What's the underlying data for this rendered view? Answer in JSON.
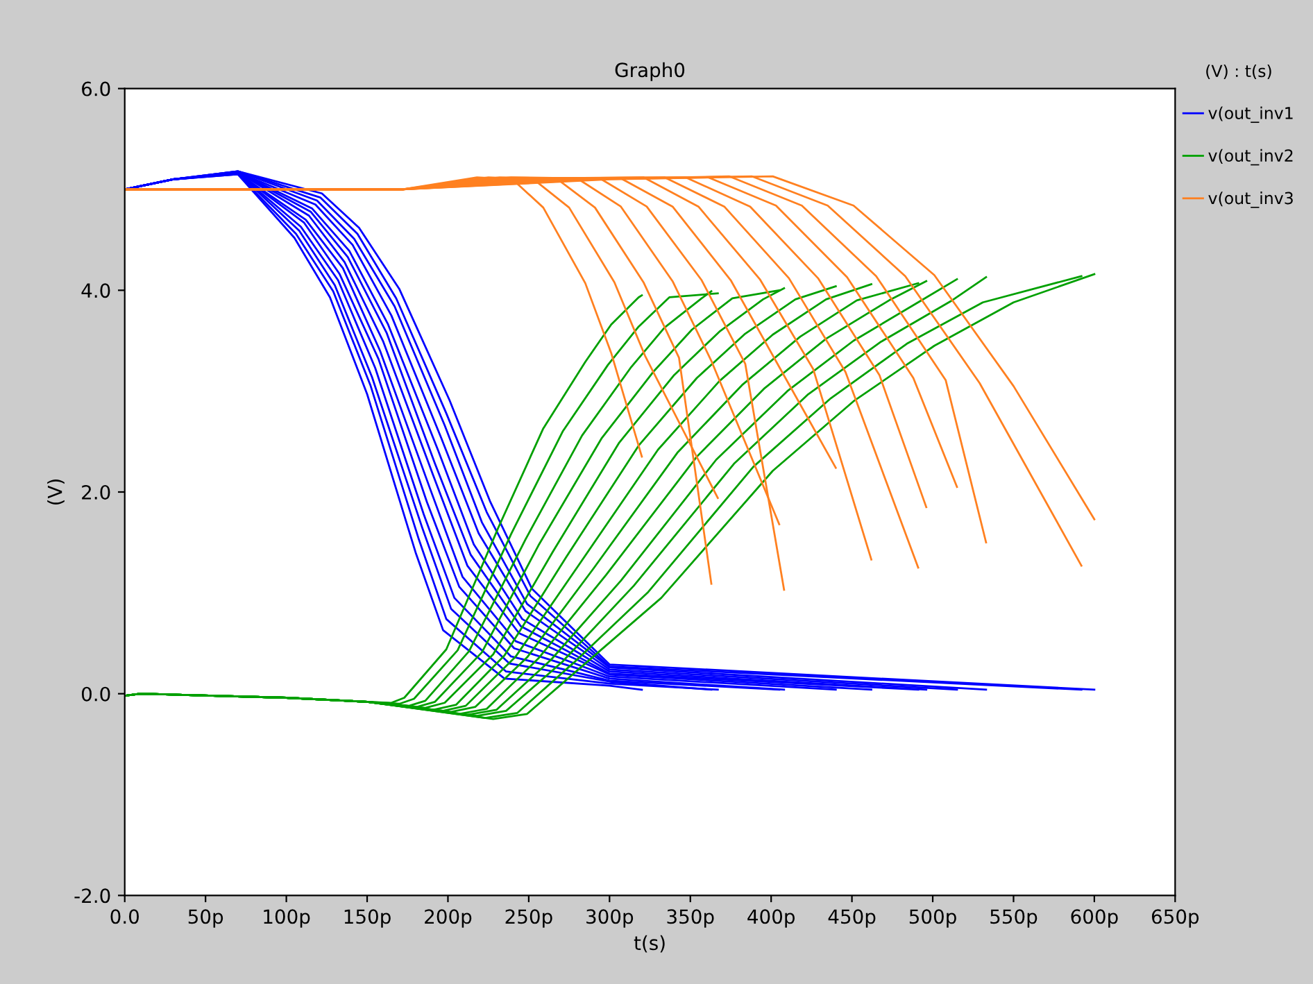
{
  "chart_data": {
    "type": "line",
    "title": "Graph0",
    "xlabel": "t(s)",
    "ylabel": "(V)",
    "legend_title": "(V) : t(s)",
    "legend": "right",
    "grid": false,
    "marker": "none",
    "line_style": "solid",
    "xlim": [
      0,
      650
    ],
    "ylim": [
      -2,
      6
    ],
    "xticks": [
      {
        "value": 0,
        "label": "0.0"
      },
      {
        "value": 50,
        "label": "50p"
      },
      {
        "value": 100,
        "label": "100p"
      },
      {
        "value": 150,
        "label": "150p"
      },
      {
        "value": 200,
        "label": "200p"
      },
      {
        "value": 250,
        "label": "250p"
      },
      {
        "value": 300,
        "label": "300p"
      },
      {
        "value": 350,
        "label": "350p"
      },
      {
        "value": 400,
        "label": "400p"
      },
      {
        "value": 450,
        "label": "450p"
      },
      {
        "value": 500,
        "label": "500p"
      },
      {
        "value": 550,
        "label": "550p"
      },
      {
        "value": 600,
        "label": "600p"
      },
      {
        "value": 650,
        "label": "650p"
      }
    ],
    "yticks": [
      {
        "value": -2,
        "label": "-2.0"
      },
      {
        "value": 0,
        "label": "0.0"
      },
      {
        "value": 2,
        "label": "2.0"
      },
      {
        "value": 4,
        "label": "4.0"
      },
      {
        "value": 6,
        "label": "6.0"
      }
    ],
    "series": [
      {
        "name": "v(out_inv1",
        "color": "#0000ff",
        "x": [
          0,
          30,
          70,
          105,
          127,
          150,
          180,
          197,
          235,
          300,
          320
        ],
        "values": [
          5.0,
          5.1,
          5.15,
          4.52,
          3.93,
          2.97,
          1.4,
          0.63,
          0.15,
          0.08,
          0.04
        ]
      },
      {
        "color": "#0000ff",
        "x": [
          0,
          30,
          70,
          106,
          129,
          152,
          182,
          199,
          236,
          300,
          367
        ],
        "values": [
          5.0,
          5.1,
          5.15,
          4.56,
          3.99,
          3.06,
          1.53,
          0.74,
          0.22,
          0.1,
          0.04
        ]
      },
      {
        "color": "#0000ff",
        "x": [
          0,
          30,
          70,
          108,
          130,
          153,
          184,
          202,
          238,
          300,
          363
        ],
        "values": [
          5.0,
          5.1,
          5.16,
          4.59,
          4.05,
          3.14,
          1.65,
          0.84,
          0.3,
          0.12,
          0.04
        ]
      },
      {
        "color": "#0000ff",
        "x": [
          0,
          30,
          70,
          109,
          132,
          155,
          185,
          204,
          239,
          300,
          405
        ],
        "values": [
          5.0,
          5.1,
          5.16,
          4.63,
          4.1,
          3.23,
          1.78,
          0.95,
          0.37,
          0.13,
          0.04
        ]
      },
      {
        "color": "#0000ff",
        "x": [
          0,
          30,
          70,
          111,
          133,
          157,
          187,
          207,
          241,
          300,
          408
        ],
        "values": [
          5.0,
          5.1,
          5.16,
          4.67,
          4.16,
          3.32,
          1.9,
          1.06,
          0.45,
          0.15,
          0.04
        ]
      },
      {
        "color": "#0000ff",
        "x": [
          0,
          30,
          70,
          112,
          135,
          158,
          189,
          209,
          242,
          300,
          440
        ],
        "values": [
          5.0,
          5.1,
          5.16,
          4.7,
          4.22,
          3.4,
          2.03,
          1.16,
          0.52,
          0.17,
          0.04
        ]
      },
      {
        "color": "#0000ff",
        "x": [
          0,
          30,
          70,
          114,
          136,
          160,
          191,
          212,
          244,
          300,
          462
        ],
        "values": [
          5.0,
          5.1,
          5.17,
          4.74,
          4.28,
          3.49,
          2.16,
          1.27,
          0.6,
          0.19,
          0.04
        ]
      },
      {
        "color": "#0000ff",
        "x": [
          0,
          30,
          70,
          115,
          138,
          162,
          192,
          214,
          245,
          300,
          491
        ],
        "values": [
          5.0,
          5.1,
          5.17,
          4.78,
          4.33,
          3.58,
          2.28,
          1.38,
          0.67,
          0.2,
          0.04
        ]
      },
      {
        "color": "#0000ff",
        "x": [
          0,
          30,
          70,
          116,
          139,
          163,
          194,
          216,
          246,
          300,
          496
        ],
        "values": [
          5.0,
          5.1,
          5.17,
          4.81,
          4.39,
          3.66,
          2.41,
          1.48,
          0.74,
          0.22,
          0.04
        ]
      },
      {
        "color": "#0000ff",
        "x": [
          0,
          30,
          70,
          118,
          141,
          165,
          196,
          219,
          248,
          300,
          515
        ],
        "values": [
          5.0,
          5.1,
          5.17,
          4.85,
          4.45,
          3.75,
          2.53,
          1.59,
          0.82,
          0.24,
          0.04
        ]
      },
      {
        "color": "#0000ff",
        "x": [
          0,
          30,
          70,
          119,
          142,
          167,
          198,
          221,
          249,
          300,
          533
        ],
        "values": [
          5.0,
          5.1,
          5.18,
          4.89,
          4.51,
          3.84,
          2.66,
          1.7,
          0.89,
          0.26,
          0.04
        ]
      },
      {
        "color": "#0000ff",
        "x": [
          0,
          30,
          70,
          121,
          144,
          168,
          199,
          224,
          251,
          300,
          592
        ],
        "values": [
          5.0,
          5.1,
          5.18,
          4.92,
          4.56,
          3.92,
          2.78,
          1.8,
          0.97,
          0.27,
          0.04
        ]
      },
      {
        "color": "#0000ff",
        "x": [
          0,
          30,
          70,
          122,
          145,
          170,
          201,
          226,
          252,
          300,
          600
        ],
        "values": [
          5.0,
          5.1,
          5.18,
          4.96,
          4.62,
          4.01,
          2.91,
          1.91,
          1.04,
          0.29,
          0.04
        ]
      },
      {
        "name": "v(out_inv2",
        "color": "#00a000",
        "x": [
          0,
          10,
          100,
          150,
          165,
          173,
          199,
          231,
          259,
          285,
          301,
          318,
          320
        ],
        "values": [
          -0.02,
          0,
          -0.04,
          -0.08,
          -0.09,
          -0.04,
          0.44,
          1.64,
          2.63,
          3.29,
          3.66,
          3.93,
          3.95
        ]
      },
      {
        "color": "#00a000",
        "x": [
          0,
          10,
          100,
          150,
          170,
          179,
          206,
          239,
          271,
          299,
          318,
          337,
          367
        ],
        "values": [
          -0.02,
          0,
          -0.04,
          -0.08,
          -0.1,
          -0.05,
          0.43,
          1.58,
          2.6,
          3.26,
          3.64,
          3.93,
          3.97
        ]
      },
      {
        "color": "#00a000",
        "x": [
          0,
          10,
          100,
          150,
          176,
          186,
          213,
          248,
          283,
          313,
          334,
          357,
          363
        ],
        "values": [
          -0.02,
          0,
          -0.04,
          -0.08,
          -0.12,
          -0.07,
          0.42,
          1.53,
          2.56,
          3.23,
          3.63,
          3.92,
          3.99
        ]
      },
      {
        "color": "#00a000",
        "x": [
          0,
          10,
          100,
          150,
          181,
          192,
          221,
          256,
          295,
          327,
          351,
          376,
          405
        ],
        "values": [
          -0.02,
          0,
          -0.04,
          -0.08,
          -0.13,
          -0.08,
          0.41,
          1.47,
          2.53,
          3.19,
          3.61,
          3.92,
          4.0
        ]
      },
      {
        "color": "#00a000",
        "x": [
          0,
          10,
          100,
          150,
          186,
          198,
          228,
          265,
          306,
          340,
          368,
          395,
          408
        ],
        "values": [
          -0.02,
          0,
          -0.04,
          -0.08,
          -0.14,
          -0.09,
          0.39,
          1.41,
          2.49,
          3.16,
          3.59,
          3.91,
          4.02
        ]
      },
      {
        "color": "#00a000",
        "x": [
          0,
          10,
          100,
          150,
          191,
          205,
          235,
          273,
          318,
          354,
          384,
          415,
          440
        ],
        "values": [
          -0.02,
          0,
          -0.04,
          -0.08,
          -0.16,
          -0.11,
          0.38,
          1.35,
          2.46,
          3.13,
          3.57,
          3.91,
          4.04
        ]
      },
      {
        "color": "#00a000",
        "x": [
          0,
          10,
          100,
          150,
          197,
          211,
          242,
          282,
          330,
          368,
          401,
          434,
          462
        ],
        "values": [
          -0.02,
          0,
          -0.04,
          -0.08,
          -0.17,
          -0.12,
          0.37,
          1.3,
          2.42,
          3.1,
          3.56,
          3.91,
          4.06
        ]
      },
      {
        "color": "#00a000",
        "x": [
          0,
          10,
          100,
          150,
          202,
          217,
          249,
          290,
          342,
          382,
          418,
          453,
          491
        ],
        "values": [
          -0.02,
          0,
          -0.04,
          -0.08,
          -0.18,
          -0.13,
          0.36,
          1.24,
          2.39,
          3.06,
          3.54,
          3.9,
          4.07
        ]
      },
      {
        "color": "#00a000",
        "x": [
          0,
          10,
          100,
          150,
          207,
          224,
          256,
          298,
          354,
          396,
          434,
          473,
          496
        ],
        "values": [
          -0.02,
          0,
          -0.04,
          -0.08,
          -0.2,
          -0.15,
          0.35,
          1.18,
          2.35,
          3.03,
          3.52,
          3.9,
          4.09
        ]
      },
      {
        "color": "#00a000",
        "x": [
          0,
          10,
          100,
          150,
          212,
          230,
          264,
          307,
          366,
          410,
          451,
          492,
          515
        ],
        "values": [
          -0.02,
          0,
          -0.04,
          -0.08,
          -0.21,
          -0.16,
          0.34,
          1.12,
          2.32,
          3.0,
          3.5,
          3.89,
          4.11
        ]
      },
      {
        "color": "#00a000",
        "x": [
          0,
          10,
          100,
          150,
          218,
          236,
          271,
          315,
          377,
          423,
          468,
          511,
          533
        ],
        "values": [
          -0.02,
          0,
          -0.04,
          -0.08,
          -0.22,
          -0.17,
          0.32,
          1.07,
          2.28,
          2.97,
          3.49,
          3.89,
          4.13
        ]
      },
      {
        "color": "#00a000",
        "x": [
          0,
          10,
          100,
          150,
          223,
          243,
          278,
          324,
          389,
          437,
          484,
          531,
          592
        ],
        "values": [
          -0.02,
          0,
          -0.04,
          -0.08,
          -0.24,
          -0.19,
          0.31,
          1.01,
          2.25,
          2.93,
          3.47,
          3.88,
          4.14
        ]
      },
      {
        "color": "#00a000",
        "x": [
          0,
          10,
          100,
          150,
          228,
          249,
          285,
          332,
          401,
          451,
          501,
          550,
          600
        ],
        "values": [
          -0.02,
          0,
          -0.04,
          -0.08,
          -0.25,
          -0.2,
          0.3,
          0.95,
          2.21,
          2.9,
          3.45,
          3.88,
          4.16
        ]
      },
      {
        "name": "v(out_inv3",
        "color": "#ff8020",
        "x": [
          0,
          172,
          218,
          240,
          259,
          285,
          301,
          320
        ],
        "values": [
          5.0,
          5.0,
          5.12,
          5.1,
          4.82,
          4.07,
          3.38,
          2.35
        ]
      },
      {
        "color": "#ff8020",
        "x": [
          0,
          172,
          225,
          253,
          275,
          303,
          322,
          367
        ],
        "values": [
          5.0,
          5.0,
          5.12,
          5.1,
          4.82,
          4.08,
          3.35,
          1.94
        ]
      },
      {
        "color": "#ff8020",
        "x": [
          0,
          172,
          232,
          267,
          291,
          321,
          343,
          363
        ],
        "values": [
          5.0,
          5.0,
          5.12,
          5.11,
          4.82,
          4.08,
          3.33,
          1.09
        ]
      },
      {
        "color": "#ff8020",
        "x": [
          0,
          172,
          239,
          280,
          307,
          339,
          363,
          405
        ],
        "values": [
          5.0,
          5.0,
          5.12,
          5.11,
          4.83,
          4.09,
          3.3,
          1.68
        ]
      },
      {
        "color": "#ff8020",
        "x": [
          0,
          172,
          245,
          294,
          323,
          357,
          384,
          408
        ],
        "values": [
          5.0,
          5.0,
          5.11,
          5.11,
          4.83,
          4.1,
          3.27,
          1.03
        ]
      },
      {
        "color": "#ff8020",
        "x": [
          0,
          172,
          252,
          307,
          339,
          375,
          405,
          440
        ],
        "values": [
          5.0,
          5.0,
          5.11,
          5.11,
          4.83,
          4.1,
          3.24,
          2.24
        ]
      },
      {
        "color": "#ff8020",
        "x": [
          0,
          172,
          259,
          321,
          355,
          393,
          426,
          462
        ],
        "values": [
          5.0,
          5.0,
          5.11,
          5.12,
          4.83,
          4.11,
          3.22,
          1.33
        ]
      },
      {
        "color": "#ff8020",
        "x": [
          0,
          172,
          266,
          334,
          371,
          411,
          446,
          491
        ],
        "values": [
          5.0,
          5.0,
          5.11,
          5.12,
          4.83,
          4.12,
          3.19,
          1.25
        ]
      },
      {
        "color": "#ff8020",
        "x": [
          0,
          172,
          273,
          347,
          387,
          429,
          467,
          496
        ],
        "values": [
          5.0,
          5.0,
          5.11,
          5.12,
          4.83,
          4.12,
          3.16,
          1.85
        ]
      },
      {
        "color": "#ff8020",
        "x": [
          0,
          172,
          280,
          361,
          403,
          447,
          488,
          515
        ],
        "values": [
          5.0,
          5.0,
          5.11,
          5.12,
          4.84,
          4.13,
          3.13,
          2.05
        ]
      },
      {
        "color": "#ff8020",
        "x": [
          0,
          172,
          286,
          374,
          419,
          465,
          508,
          533
        ],
        "values": [
          5.0,
          5.0,
          5.1,
          5.13,
          4.84,
          4.14,
          3.11,
          1.5
        ]
      },
      {
        "color": "#ff8020",
        "x": [
          0,
          172,
          293,
          388,
          435,
          483,
          529,
          592
        ],
        "values": [
          5.0,
          5.0,
          5.1,
          5.13,
          4.84,
          4.14,
          3.08,
          1.27
        ]
      },
      {
        "color": "#ff8020",
        "x": [
          0,
          172,
          300,
          401,
          451,
          501,
          550,
          600
        ],
        "values": [
          5.0,
          5.0,
          5.1,
          5.13,
          4.84,
          4.15,
          3.05,
          1.73
        ]
      }
    ]
  }
}
